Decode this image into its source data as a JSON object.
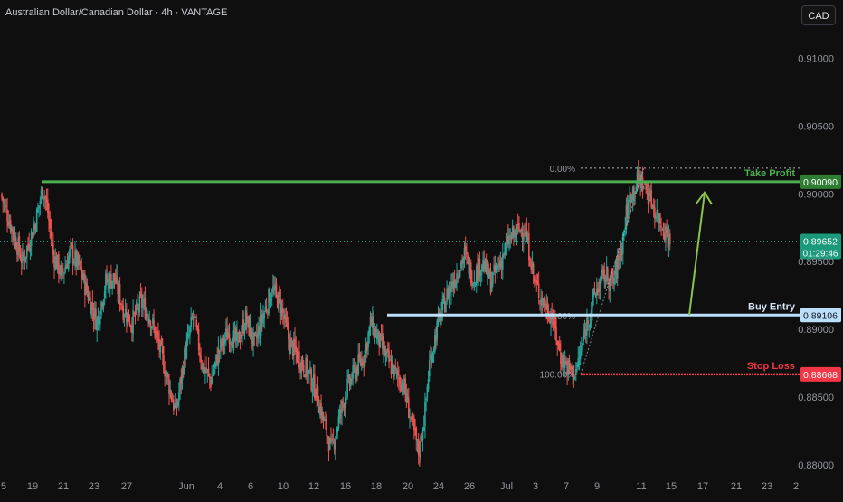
{
  "header": {
    "title": "Australian Dollar/Canadian Dollar · 4h · VANTAGE",
    "currency_button": "CAD"
  },
  "colors": {
    "background": "#0f0f0f",
    "bull": "#26a69a",
    "bear": "#ef5350",
    "take_profit": "#4caf50",
    "entry": "#bbdefb",
    "stop_loss": "#f23645",
    "arrow": "#8bc34a",
    "current_price": "#1a9a7a"
  },
  "chart_data": {
    "type": "candlestick",
    "symbol": "Australian Dollar/Canadian Dollar",
    "timeframe": "4h",
    "ylim": [
      0.8776,
      0.9143
    ],
    "y_ticks": [
      "0.91000",
      "0.90500",
      "0.90000",
      "0.89500",
      "0.89000",
      "0.88500",
      "0.88000"
    ],
    "x_ticks": [
      "5",
      "19",
      "21",
      "23",
      "27",
      "Jun",
      "4",
      "6",
      "10",
      "12",
      "16",
      "18",
      "20",
      "24",
      "26",
      "Jul",
      "3",
      "7",
      "9",
      "11",
      "15",
      "17",
      "21",
      "23",
      "2"
    ],
    "price_path": [
      [
        0.0,
        0.9
      ],
      [
        2.5,
        0.895
      ],
      [
        4.0,
        0.898
      ],
      [
        4.8,
        0.9005
      ],
      [
        5.3,
        0.899
      ],
      [
        6.0,
        0.8955
      ],
      [
        7.0,
        0.894
      ],
      [
        8.0,
        0.8958
      ],
      [
        9.0,
        0.8945
      ],
      [
        10.0,
        0.8925
      ],
      [
        11.0,
        0.8905
      ],
      [
        12.0,
        0.8935
      ],
      [
        13.0,
        0.8938
      ],
      [
        14.0,
        0.8915
      ],
      [
        15.0,
        0.8905
      ],
      [
        16.0,
        0.892
      ],
      [
        17.0,
        0.891
      ],
      [
        18.0,
        0.889
      ],
      [
        19.0,
        0.8865
      ],
      [
        20.0,
        0.8838
      ],
      [
        21.0,
        0.888
      ],
      [
        22.0,
        0.891
      ],
      [
        23.0,
        0.8875
      ],
      [
        24.0,
        0.8862
      ],
      [
        25.0,
        0.8885
      ],
      [
        26.0,
        0.8898
      ],
      [
        27.0,
        0.889
      ],
      [
        28.0,
        0.8908
      ],
      [
        29.0,
        0.8888
      ],
      [
        30.0,
        0.891
      ],
      [
        31.0,
        0.893
      ],
      [
        32.0,
        0.8918
      ],
      [
        33.0,
        0.889
      ],
      [
        34.0,
        0.888
      ],
      [
        35.0,
        0.887
      ],
      [
        36.0,
        0.8855
      ],
      [
        37.0,
        0.883
      ],
      [
        37.8,
        0.881
      ],
      [
        38.5,
        0.883
      ],
      [
        39.5,
        0.8855
      ],
      [
        40.5,
        0.887
      ],
      [
        41.5,
        0.888
      ],
      [
        42.3,
        0.8905
      ],
      [
        43.0,
        0.8895
      ],
      [
        44.0,
        0.888
      ],
      [
        45.0,
        0.8868
      ],
      [
        46.0,
        0.886
      ],
      [
        47.0,
        0.883
      ],
      [
        47.8,
        0.8808
      ],
      [
        48.5,
        0.884
      ],
      [
        49.0,
        0.8875
      ],
      [
        50.0,
        0.8905
      ],
      [
        51.0,
        0.8925
      ],
      [
        52.0,
        0.894
      ],
      [
        53.0,
        0.8955
      ],
      [
        54.0,
        0.8938
      ],
      [
        55.0,
        0.895
      ],
      [
        56.0,
        0.8935
      ],
      [
        57.0,
        0.8948
      ],
      [
        58.0,
        0.8965
      ],
      [
        59.0,
        0.8972
      ],
      [
        59.8,
        0.8975
      ],
      [
        60.5,
        0.8955
      ],
      [
        61.0,
        0.8935
      ],
      [
        62.0,
        0.892
      ],
      [
        63.0,
        0.891
      ],
      [
        64.0,
        0.888
      ],
      [
        65.0,
        0.887
      ],
      [
        65.6,
        0.8868
      ],
      [
        66.0,
        0.8875
      ],
      [
        67.0,
        0.8905
      ],
      [
        68.0,
        0.8928
      ],
      [
        69.0,
        0.894
      ],
      [
        70.0,
        0.8935
      ],
      [
        71.0,
        0.8962
      ],
      [
        71.5,
        0.8985
      ],
      [
        72.0,
        0.9
      ],
      [
        73.0,
        0.9012
      ],
      [
        74.0,
        0.9
      ],
      [
        75.0,
        0.8985
      ],
      [
        76.0,
        0.8972
      ],
      [
        76.6,
        0.8962
      ]
    ],
    "levels": [
      {
        "label": "Take Profit",
        "price": 0.9009,
        "value_label": "0.90090",
        "role": "take_profit"
      },
      {
        "label": "Buy Entry",
        "price": 0.89106,
        "value_label": "0.89106",
        "role": "entry"
      },
      {
        "label": "Stop Loss",
        "price": 0.88668,
        "value_label": "0.88668",
        "role": "stop_loss"
      }
    ],
    "fib_labels": [
      {
        "label": "0.00%",
        "price": 0.9019
      },
      {
        "label": "71.00%",
        "price": 0.891
      },
      {
        "label": "100.00%",
        "price": 0.8867
      }
    ],
    "current_price": {
      "value": "0.89652",
      "countdown": "01:29:46",
      "price": 0.89652
    },
    "arrow": {
      "from_price": 0.89106,
      "to_price": 0.9001
    }
  }
}
